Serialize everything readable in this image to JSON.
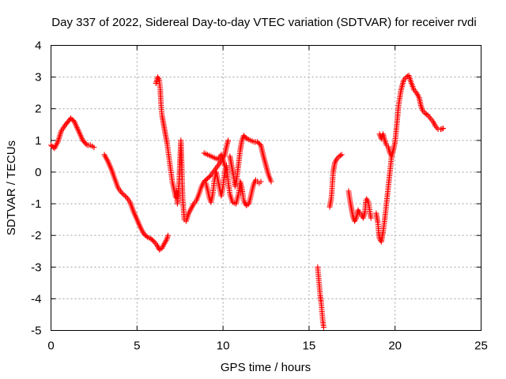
{
  "chart_data": {
    "type": "scatter",
    "title": "Day 337 of 2022, Sidereal Day-to-day VTEC variation (SDTVAR) for receiver rvdi",
    "xlabel": "GPS time / hours",
    "ylabel": "SDTVAR / TECUs",
    "xlim": [
      0,
      25
    ],
    "ylim": [
      -5,
      4
    ],
    "xticks": [
      0,
      5,
      10,
      15,
      20,
      25
    ],
    "yticks": [
      -5,
      -4,
      -3,
      -2,
      -1,
      0,
      1,
      2,
      3,
      4
    ],
    "grid": true,
    "marker": "+",
    "color": "#ff0000",
    "series": [
      {
        "name": "SDTVAR",
        "segments": [
          [
            [
              0.0,
              0.85
            ],
            [
              0.2,
              0.75
            ],
            [
              0.4,
              0.95
            ],
            [
              0.6,
              1.3
            ],
            [
              0.85,
              1.5
            ],
            [
              1.15,
              1.7
            ],
            [
              1.35,
              1.6
            ],
            [
              1.6,
              1.3
            ],
            [
              1.85,
              1.0
            ],
            [
              2.1,
              0.85
            ],
            [
              2.3,
              0.85
            ],
            [
              2.5,
              0.78
            ]
          ],
          [
            [
              3.1,
              0.55
            ],
            [
              3.3,
              0.35
            ],
            [
              3.5,
              0.1
            ],
            [
              3.7,
              -0.2
            ],
            [
              3.9,
              -0.5
            ],
            [
              4.1,
              -0.65
            ],
            [
              4.4,
              -0.8
            ],
            [
              4.6,
              -0.95
            ],
            [
              4.8,
              -1.25
            ],
            [
              5.0,
              -1.5
            ],
            [
              5.2,
              -1.75
            ],
            [
              5.4,
              -1.95
            ],
            [
              5.6,
              -2.05
            ],
            [
              5.8,
              -2.1
            ],
            [
              6.0,
              -2.2
            ],
            [
              6.15,
              -2.3
            ],
            [
              6.3,
              -2.45
            ],
            [
              6.45,
              -2.4
            ],
            [
              6.6,
              -2.25
            ],
            [
              6.75,
              -2.1
            ],
            [
              6.8,
              -2.0
            ]
          ],
          [
            [
              6.1,
              2.8
            ],
            [
              6.2,
              3.0
            ],
            [
              6.3,
              2.9
            ],
            [
              6.35,
              2.6
            ],
            [
              6.4,
              2.1
            ],
            [
              6.45,
              1.8
            ],
            [
              6.55,
              1.5
            ],
            [
              6.65,
              1.2
            ],
            [
              6.75,
              0.9
            ],
            [
              6.85,
              0.5
            ],
            [
              6.95,
              0.1
            ],
            [
              7.05,
              -0.3
            ],
            [
              7.15,
              -0.55
            ],
            [
              7.25,
              -0.8
            ],
            [
              7.3,
              -0.6
            ],
            [
              7.35,
              -1.0
            ],
            [
              7.45,
              -0.3
            ],
            [
              7.5,
              0.4
            ],
            [
              7.55,
              1.0
            ],
            [
              7.6,
              0.2
            ],
            [
              7.65,
              -0.8
            ],
            [
              7.75,
              -1.5
            ],
            [
              7.85,
              -1.55
            ],
            [
              8.0,
              -1.3
            ],
            [
              8.15,
              -1.15
            ],
            [
              8.3,
              -1.0
            ],
            [
              8.45,
              -0.9
            ],
            [
              8.6,
              -0.7
            ],
            [
              8.75,
              -0.45
            ],
            [
              8.9,
              -0.3
            ],
            [
              9.1,
              -0.2
            ],
            [
              9.3,
              -0.1
            ],
            [
              9.5,
              0.05
            ],
            [
              9.7,
              0.2
            ],
            [
              9.9,
              0.35
            ],
            [
              10.1,
              0.55
            ],
            [
              10.2,
              0.8
            ],
            [
              10.3,
              1.0
            ]
          ],
          [
            [
              8.9,
              0.6
            ],
            [
              9.1,
              0.55
            ],
            [
              9.3,
              0.5
            ],
            [
              9.5,
              0.45
            ],
            [
              9.7,
              0.4
            ],
            [
              9.9,
              0.55
            ],
            [
              10.0,
              0.4
            ],
            [
              10.1,
              0.2
            ]
          ],
          [
            [
              9.0,
              -0.35
            ],
            [
              9.1,
              -0.55
            ],
            [
              9.2,
              -0.8
            ],
            [
              9.3,
              -0.95
            ],
            [
              9.4,
              -0.7
            ],
            [
              9.5,
              -0.25
            ],
            [
              9.6,
              0.0
            ],
            [
              9.7,
              -0.25
            ],
            [
              9.8,
              -0.5
            ],
            [
              9.9,
              -0.75
            ],
            [
              10.0,
              -0.45
            ],
            [
              10.1,
              0.0
            ],
            [
              10.2,
              0.2
            ],
            [
              10.3,
              -0.3
            ],
            [
              10.4,
              -0.7
            ],
            [
              10.55,
              -0.95
            ],
            [
              10.75,
              -1.0
            ],
            [
              10.9,
              -0.7
            ],
            [
              11.0,
              -0.3
            ],
            [
              11.1,
              -0.5
            ],
            [
              11.2,
              -0.9
            ],
            [
              11.35,
              -1.05
            ],
            [
              11.5,
              -1.0
            ],
            [
              11.6,
              -0.8
            ],
            [
              11.7,
              -0.55
            ],
            [
              11.8,
              -0.35
            ],
            [
              11.9,
              -0.25
            ],
            [
              12.0,
              -0.3
            ],
            [
              12.1,
              -0.35
            ],
            [
              12.2,
              -0.3
            ]
          ],
          [
            [
              10.4,
              0.5
            ],
            [
              10.5,
              0.2
            ],
            [
              10.6,
              -0.1
            ],
            [
              10.7,
              -0.45
            ],
            [
              10.8,
              -0.2
            ],
            [
              10.9,
              0.25
            ],
            [
              11.0,
              0.7
            ],
            [
              11.1,
              1.0
            ],
            [
              11.2,
              1.15
            ],
            [
              11.4,
              1.05
            ],
            [
              11.6,
              1.0
            ],
            [
              11.8,
              0.95
            ],
            [
              12.0,
              0.95
            ],
            [
              12.2,
              0.85
            ],
            [
              12.35,
              0.5
            ],
            [
              12.5,
              0.2
            ],
            [
              12.65,
              -0.1
            ],
            [
              12.8,
              -0.3
            ]
          ],
          [
            [
              15.5,
              -3.0
            ],
            [
              15.55,
              -3.3
            ],
            [
              15.6,
              -3.6
            ],
            [
              15.65,
              -3.9
            ],
            [
              15.7,
              -4.1
            ],
            [
              15.75,
              -4.4
            ],
            [
              15.8,
              -4.7
            ],
            [
              15.85,
              -4.9
            ]
          ],
          [
            [
              16.2,
              -1.1
            ],
            [
              16.3,
              -0.8
            ],
            [
              16.35,
              -0.4
            ],
            [
              16.4,
              0.0
            ],
            [
              16.5,
              0.3
            ],
            [
              16.6,
              0.4
            ],
            [
              16.75,
              0.5
            ],
            [
              16.9,
              0.55
            ]
          ],
          [
            [
              17.3,
              -0.6
            ],
            [
              17.35,
              -0.8
            ],
            [
              17.45,
              -1.1
            ],
            [
              17.55,
              -1.4
            ],
            [
              17.65,
              -1.55
            ],
            [
              17.75,
              -1.45
            ],
            [
              17.85,
              -1.2
            ],
            [
              17.95,
              -1.3
            ],
            [
              18.05,
              -1.35
            ],
            [
              18.15,
              -1.45
            ],
            [
              18.25,
              -1.25
            ],
            [
              18.3,
              -0.9
            ],
            [
              18.35,
              -0.85
            ],
            [
              18.45,
              -0.95
            ],
            [
              18.55,
              -1.3
            ],
            [
              18.6,
              -1.45
            ]
          ],
          [
            [
              18.9,
              -1.3
            ],
            [
              19.0,
              -1.6
            ],
            [
              19.05,
              -1.9
            ],
            [
              19.1,
              -2.1
            ],
            [
              19.2,
              -2.2
            ],
            [
              19.3,
              -1.9
            ],
            [
              19.4,
              -1.5
            ],
            [
              19.5,
              -1.0
            ],
            [
              19.6,
              -0.5
            ],
            [
              19.7,
              0.0
            ],
            [
              19.8,
              0.5
            ]
          ],
          [
            [
              19.1,
              1.2
            ],
            [
              19.2,
              1.05
            ],
            [
              19.3,
              1.2
            ],
            [
              19.4,
              1.0
            ],
            [
              19.5,
              0.85
            ],
            [
              19.6,
              0.8
            ],
            [
              19.7,
              0.6
            ],
            [
              19.8,
              0.5
            ],
            [
              19.9,
              0.7
            ],
            [
              20.0,
              0.95
            ],
            [
              20.1,
              1.5
            ],
            [
              20.2,
              2.1
            ],
            [
              20.35,
              2.6
            ],
            [
              20.5,
              2.9
            ],
            [
              20.65,
              3.0
            ],
            [
              20.8,
              3.05
            ],
            [
              20.95,
              2.8
            ],
            [
              21.1,
              2.6
            ],
            [
              21.25,
              2.5
            ],
            [
              21.4,
              2.35
            ],
            [
              21.5,
              2.1
            ],
            [
              21.6,
              1.95
            ],
            [
              21.75,
              1.85
            ],
            [
              21.9,
              1.8
            ],
            [
              22.05,
              1.7
            ],
            [
              22.2,
              1.6
            ],
            [
              22.35,
              1.45
            ],
            [
              22.5,
              1.35
            ],
            [
              22.65,
              1.35
            ],
            [
              22.8,
              1.38
            ]
          ]
        ]
      }
    ]
  }
}
